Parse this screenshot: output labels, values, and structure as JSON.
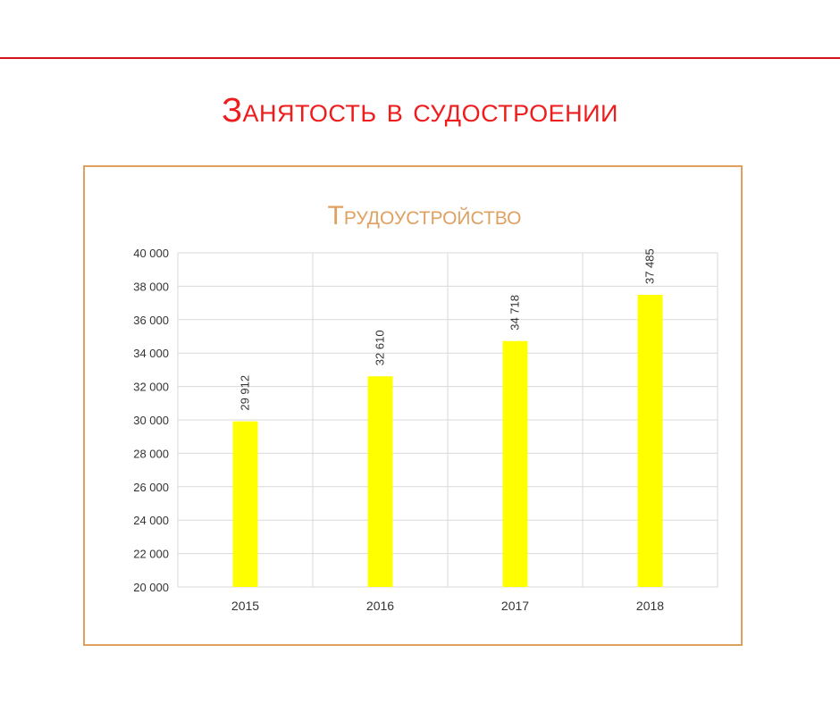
{
  "slide": {
    "title": "Занятость в судостроении"
  },
  "colors": {
    "title": "#ee1c1c",
    "rule": "#d4141c",
    "frame": "#e0a060",
    "chart_title": "#e0a060",
    "bar": "#ffff00",
    "grid": "#d9d9d9",
    "text": "#333333"
  },
  "chart_data": {
    "type": "bar",
    "title": "Трудоустройство",
    "categories": [
      "2015",
      "2016",
      "2017",
      "2018"
    ],
    "values": [
      29912,
      32610,
      34718,
      37485
    ],
    "value_labels": [
      "29 912",
      "32 610",
      "34 718",
      "37 485"
    ],
    "ylim": [
      20000,
      40000
    ],
    "yticks": [
      20000,
      22000,
      24000,
      26000,
      28000,
      30000,
      32000,
      34000,
      36000,
      38000,
      40000
    ],
    "ytick_labels": [
      "20 000",
      "22 000",
      "24 000",
      "26 000",
      "28 000",
      "30 000",
      "32 000",
      "34 000",
      "36 000",
      "38 000",
      "40 000"
    ],
    "xlabel": "",
    "ylabel": "",
    "grid": true,
    "legend": "none"
  }
}
